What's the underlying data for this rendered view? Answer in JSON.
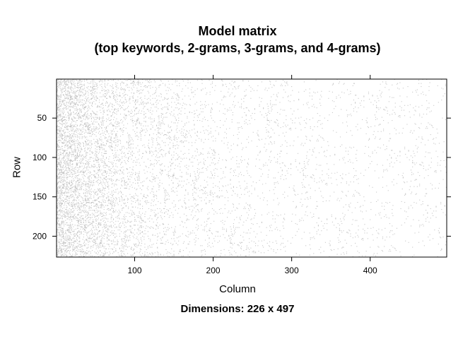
{
  "chart_data": {
    "type": "heatmap",
    "title": "Model matrix",
    "subtitle": "(top keywords, 2-grams, 3-grams, and 4-grams)",
    "xlabel": "Column",
    "ylabel": "Row",
    "sublabel": "Dimensions: 226 x 497",
    "nrows": 226,
    "ncols": 497,
    "xlim": [
      1,
      497
    ],
    "ylim": [
      1,
      226
    ],
    "y_reversed": true,
    "x_ticks": [
      100,
      200,
      300,
      400
    ],
    "y_ticks": [
      50,
      100,
      150,
      200
    ],
    "x_tick_labels": [
      "100",
      "200",
      "300",
      "400"
    ],
    "y_tick_labels": [
      "50",
      "100",
      "150",
      "200"
    ],
    "density_profile": "sparse binary matrix; nonzero density highest in the lowest-numbered columns and decreasing toward higher column indices",
    "fill_color": "#c8c8c8",
    "frame_color": "#000000"
  }
}
